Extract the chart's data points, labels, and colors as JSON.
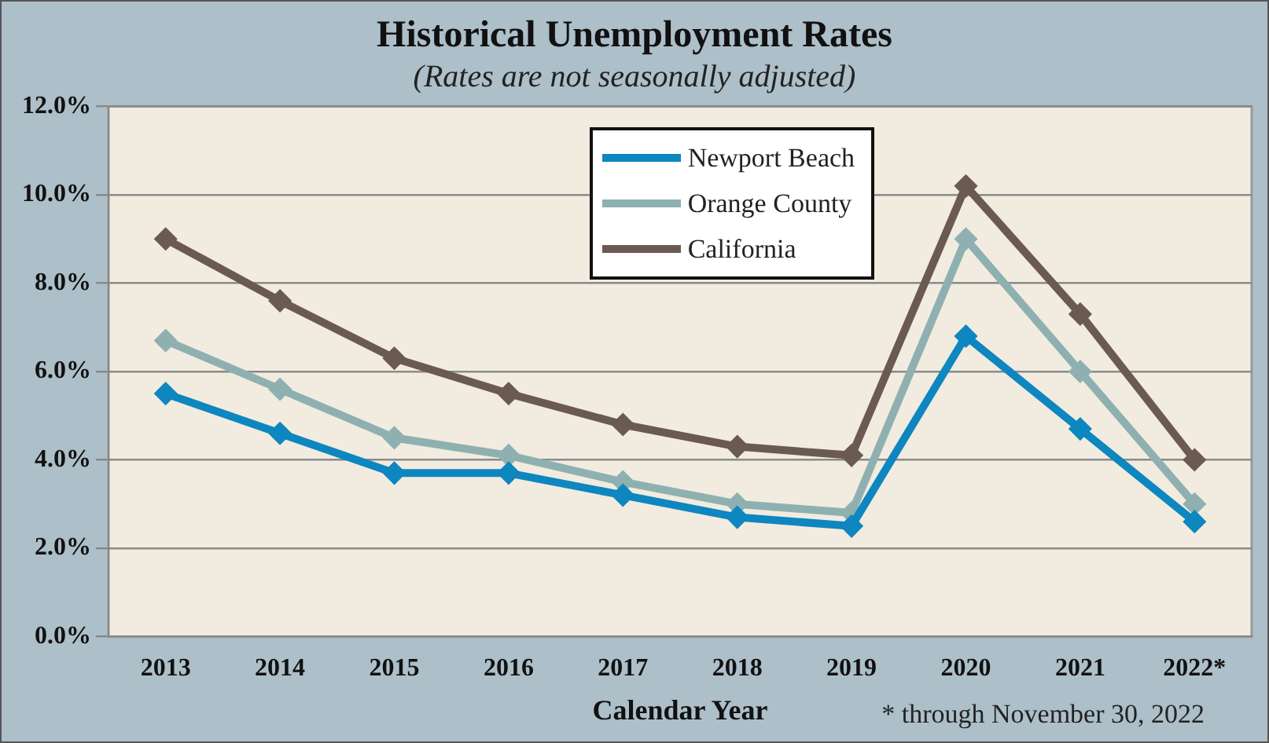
{
  "chart_data": {
    "type": "line",
    "title": "Historical Unemployment Rates",
    "subtitle": "(Rates are not seasonally adjusted)",
    "xlabel": "Calendar Year",
    "categories": [
      "2013",
      "2014",
      "2015",
      "2016",
      "2017",
      "2018",
      "2019",
      "2020",
      "2021",
      "2022*"
    ],
    "series": [
      {
        "name": "Newport Beach",
        "color": "#0e86c0",
        "values": [
          5.5,
          4.6,
          3.7,
          3.7,
          3.2,
          2.7,
          2.5,
          6.8,
          4.7,
          2.6
        ]
      },
      {
        "name": "Orange County",
        "color": "#8fb0b0",
        "values": [
          6.7,
          5.6,
          4.5,
          4.1,
          3.5,
          3.0,
          2.8,
          9.0,
          6.0,
          3.0
        ]
      },
      {
        "name": "California",
        "color": "#6b5a52",
        "values": [
          9.0,
          7.6,
          6.3,
          5.5,
          4.8,
          4.3,
          4.1,
          10.2,
          7.3,
          4.0
        ]
      }
    ],
    "ylim": [
      0,
      12
    ],
    "yticks": [
      {
        "value": 0,
        "label": "0.0%"
      },
      {
        "value": 2,
        "label": "2.0%"
      },
      {
        "value": 4,
        "label": "4.0%"
      },
      {
        "value": 6,
        "label": "6.0%"
      },
      {
        "value": 8,
        "label": "8.0%"
      },
      {
        "value": 10,
        "label": "10.0%"
      },
      {
        "value": 12,
        "label": "12.0%"
      }
    ],
    "grid": "y",
    "legend": "top",
    "marker": "diamond",
    "line_style": "solid",
    "annotations": [
      "* through November 30, 2022"
    ]
  }
}
